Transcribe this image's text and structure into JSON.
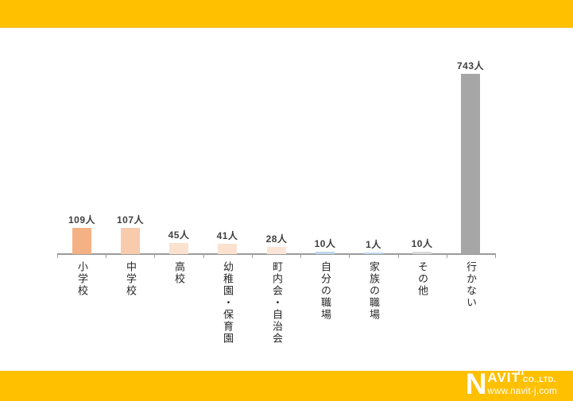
{
  "page": {
    "background": "#ffffff",
    "accent_yellow": "#FFC000"
  },
  "chart_data": {
    "type": "bar",
    "title": "",
    "xlabel": "",
    "ylabel": "",
    "unit": "人",
    "categories": [
      "小学校",
      "中学校",
      "高校",
      "幼稚園・保育園",
      "町内会・自治会",
      "自分の職場",
      "家族の職場",
      "その他",
      "行かない"
    ],
    "values": [
      109,
      107,
      45,
      41,
      28,
      10,
      1,
      10,
      743
    ],
    "value_labels": [
      "109人",
      "107人",
      "45人",
      "41人",
      "28人",
      "10人",
      "1人",
      "10人",
      "743人"
    ],
    "bar_colors": [
      "#F4B183",
      "#F8CBAD",
      "#FBE1CF",
      "#FBE1CF",
      "#FCE5D6",
      "#BDD7EE",
      "#BDD7EE",
      "#D9D9D9",
      "#A6A6A6"
    ],
    "ylim": [
      0,
      800
    ],
    "grid": false,
    "legend": "none",
    "axis_color": "#9B9B9B",
    "value_label_color": "#3f3f3f",
    "category_label_color": "#262626"
  },
  "footer": {
    "logo_n": "N",
    "logo_rest": "AVIT",
    "logo_suffix": "CO.,LTD.",
    "website": "www.navit-j.com"
  }
}
